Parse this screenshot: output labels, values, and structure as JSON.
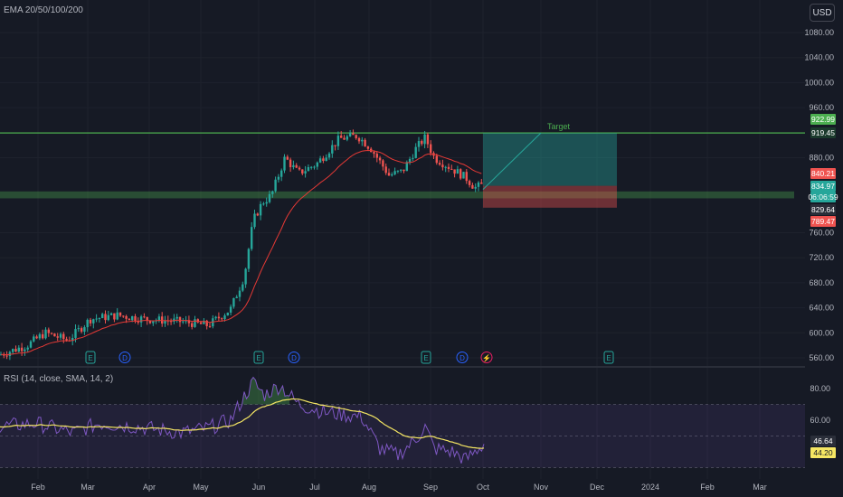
{
  "indicators": {
    "ema_label": "EMA 20/50/100/200",
    "rsi_label": "RSI (14, close, SMA, 14, 2)"
  },
  "scale": {
    "currency": "USD"
  },
  "colors": {
    "background": "#161a25",
    "up": "#26a69a",
    "down": "#ef5350",
    "ema": "#e53935",
    "target_line": "#4caf50",
    "rsi_line": "#7e57c2",
    "rsi_sma": "#f5e663"
  },
  "position": {
    "target_label": "Target"
  },
  "chart_data": [
    {
      "type": "candlestick",
      "title": "",
      "y_ticks": [
        1080,
        1040,
        1000,
        960,
        880,
        760,
        720,
        680,
        640,
        600,
        560
      ],
      "ylim": [
        560,
        1100
      ],
      "x_ticks": [
        "Feb",
        "Mar",
        "Apr",
        "May",
        "Jun",
        "Jul",
        "Aug",
        "Sep",
        "Oct",
        "Nov",
        "Dec",
        "2024",
        "Feb",
        "Mar"
      ],
      "price_labels": [
        {
          "text": "922.99",
          "bg": "#4caf50",
          "fg": "#ffffff"
        },
        {
          "text": "919.45",
          "bg": "#1b3a2c",
          "fg": "#ffffff"
        },
        {
          "text": "840.21",
          "bg": "#ef5350",
          "fg": "#ffffff"
        },
        {
          "text": "834.97",
          "bg": "#26a69a",
          "fg": "#ffffff"
        },
        {
          "text": "06:06:59",
          "bg": "#26a69a",
          "fg": "#ffffff"
        },
        {
          "text": "829.64",
          "bg": "#2a2e39",
          "fg": "#ffffff"
        },
        {
          "text": "789.47",
          "bg": "#ef5350",
          "fg": "#ffffff"
        }
      ],
      "horizontal_levels": [
        919.45
      ],
      "zone": [
        815,
        826
      ],
      "position_box": {
        "entry": 834.97,
        "target": 919.45,
        "stop": 800
      },
      "events": [
        "E",
        "D",
        "E",
        "D",
        "E",
        "D",
        "⚡",
        "E"
      ],
      "ema_series": {
        "name": ""
      }
    },
    {
      "type": "line",
      "title": "",
      "y_ticks": [
        80.0,
        60.0
      ],
      "ylim": [
        20,
        90
      ],
      "band": [
        30,
        70
      ],
      "values_labels": [
        {
          "text": "46.64",
          "bg": "#2a2e39",
          "fg": "#ffffff"
        },
        {
          "text": "44.20",
          "bg": "#f5e663",
          "fg": "#131722"
        }
      ]
    }
  ]
}
